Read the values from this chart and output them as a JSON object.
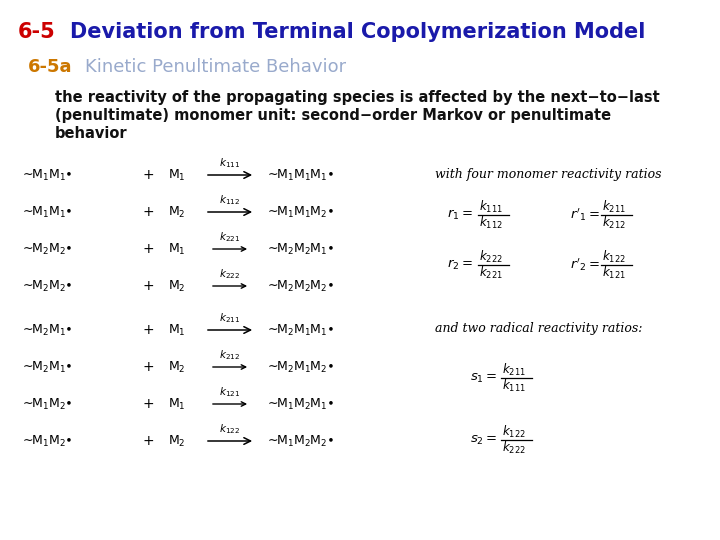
{
  "title_number": "6-5",
  "title_text": "Deviation from Terminal Copolymerization Model",
  "title_number_color": "#cc0000",
  "title_text_color": "#1a1aaa",
  "subtitle_number": "6-5a",
  "subtitle_text": "Kinetic Penultimate Behavior",
  "subtitle_number_color": "#cc7700",
  "subtitle_text_color": "#99aacc",
  "body_line1": "the reactivity of the propagating species is affected by the next−to−last",
  "body_line2": "(penultimate) monomer unit: second−order Markov or penultimate",
  "body_line3": "behavior",
  "background_color": "#ffffff",
  "title_fontsize": 15,
  "subtitle_fontsize": 13,
  "body_fontsize": 10.5
}
